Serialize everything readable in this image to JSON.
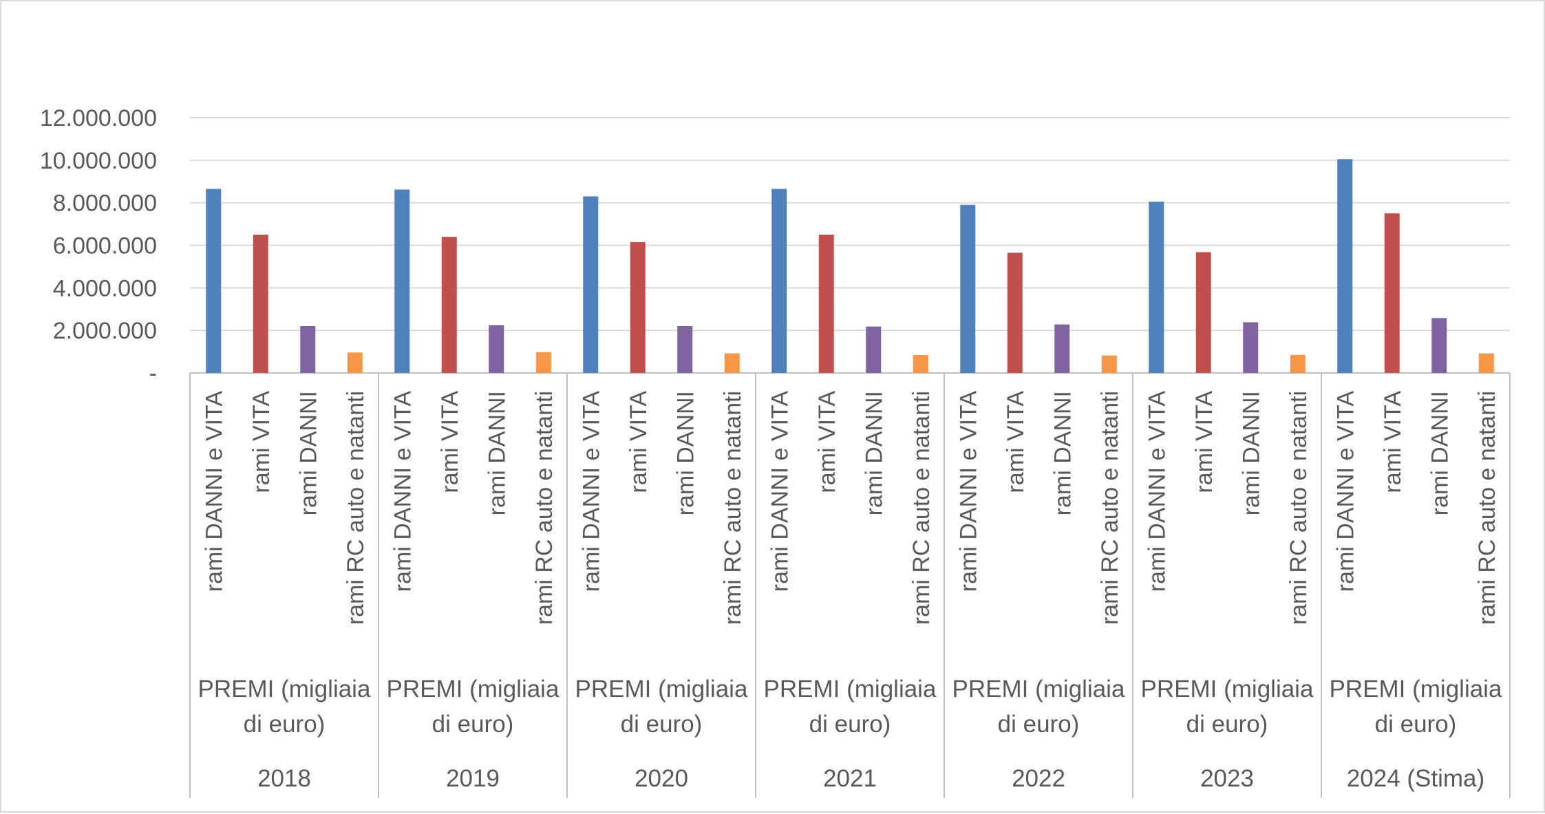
{
  "chart_data": {
    "type": "bar",
    "title": "",
    "xlabel": "",
    "ylabel": "",
    "ylim": [
      0,
      12000000
    ],
    "y_ticks": [
      {
        "value": 0,
        "label": "-"
      },
      {
        "value": 2000000,
        "label": "2.000.000"
      },
      {
        "value": 4000000,
        "label": "4.000.000"
      },
      {
        "value": 6000000,
        "label": "6.000.000"
      },
      {
        "value": 8000000,
        "label": "8.000.000"
      },
      {
        "value": 10000000,
        "label": "10.000.000"
      },
      {
        "value": 12000000,
        "label": "12.000.000"
      }
    ],
    "grid": true,
    "legend": "none",
    "groups": [
      {
        "year": "2018",
        "measure_line1": "PREMI (migliaia",
        "measure_line2": "di euro)"
      },
      {
        "year": "2019",
        "measure_line1": "PREMI (migliaia",
        "measure_line2": "di euro)"
      },
      {
        "year": "2020",
        "measure_line1": "PREMI (migliaia",
        "measure_line2": "di euro)"
      },
      {
        "year": "2021",
        "measure_line1": "PREMI (migliaia",
        "measure_line2": "di euro)"
      },
      {
        "year": "2022",
        "measure_line1": "PREMI (migliaia",
        "measure_line2": "di euro)"
      },
      {
        "year": "2023",
        "measure_line1": "PREMI (migliaia",
        "measure_line2": "di euro)"
      },
      {
        "year": "2024 (Stima)",
        "measure_line1": "PREMI (migliaia",
        "measure_line2": "di euro)"
      }
    ],
    "categories": [
      "rami DANNI e VITA",
      "rami VITA",
      "rami DANNI",
      "rami RC auto e natanti"
    ],
    "colors": [
      "#4f81bd",
      "#c0504d",
      "#8064a2",
      "#f79646"
    ],
    "values": [
      [
        8650000,
        6500000,
        2200000,
        960000
      ],
      [
        8620000,
        6400000,
        2250000,
        980000
      ],
      [
        8300000,
        6150000,
        2200000,
        920000
      ],
      [
        8650000,
        6500000,
        2180000,
        840000
      ],
      [
        7900000,
        5650000,
        2280000,
        820000
      ],
      [
        8050000,
        5680000,
        2380000,
        850000
      ],
      [
        10050000,
        7500000,
        2580000,
        920000
      ]
    ]
  }
}
